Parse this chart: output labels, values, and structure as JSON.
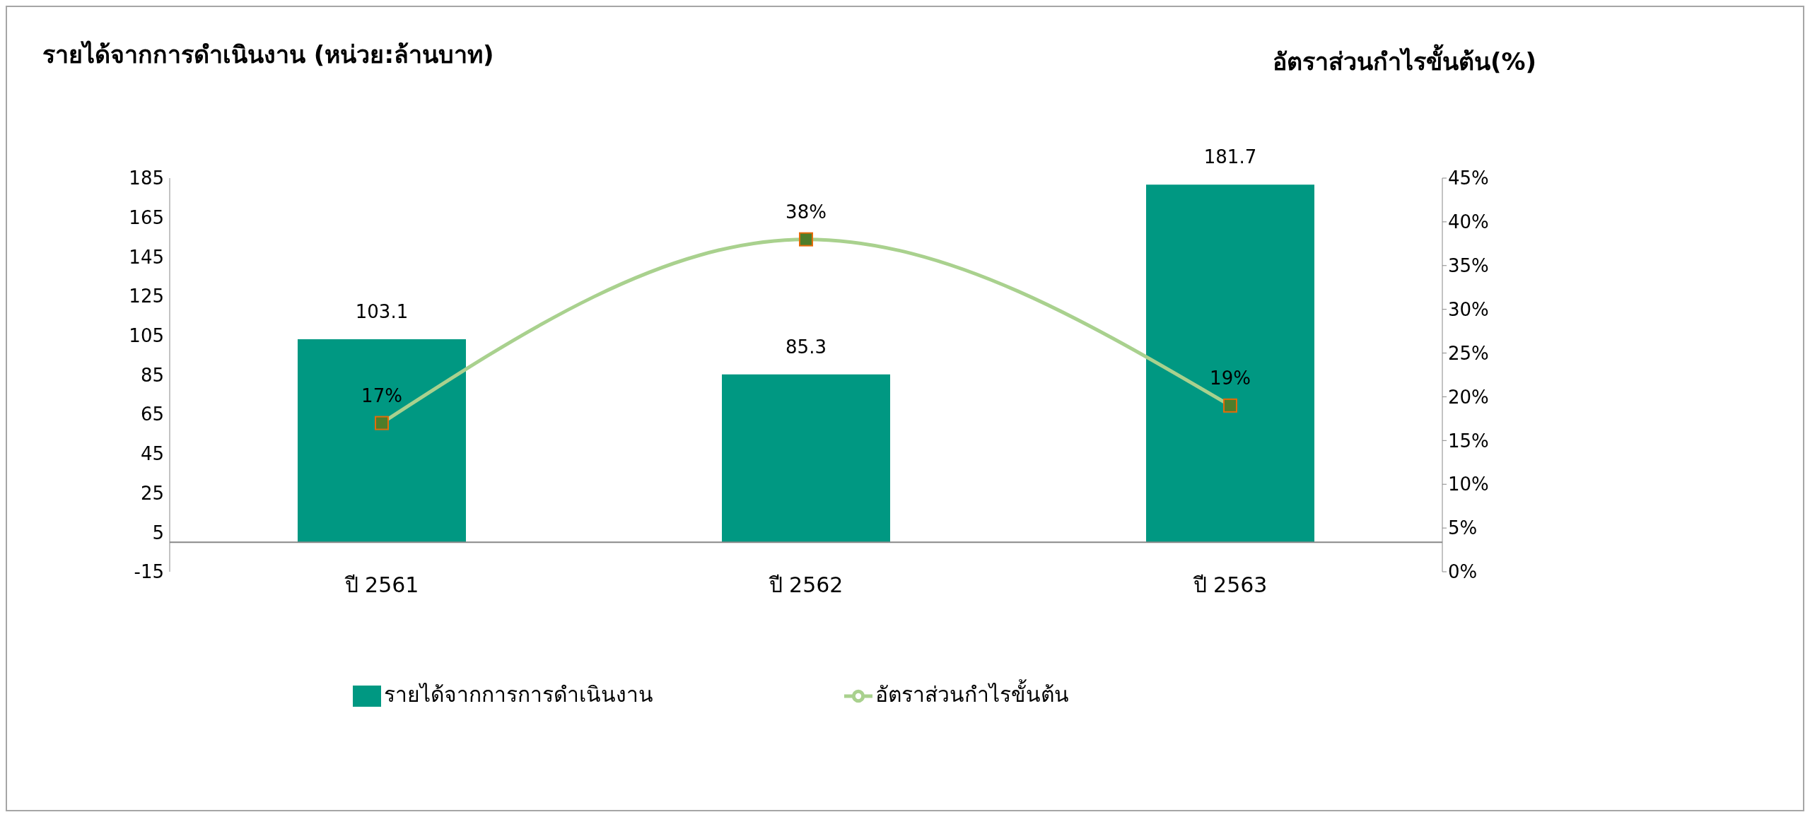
{
  "chart_data": {
    "type": "bar",
    "ylabel": "รายได้จากการดำเนินงาน (หน่วย:ล้านบาท)",
    "y2label": "อัตราส่วนกำไรขั้นต้น(%)",
    "categories": [
      "ปี 2561",
      "ปี 2562",
      "ปี 2563"
    ],
    "series": [
      {
        "name": "รายได้จากการการดำเนินงาน",
        "color": "#009882",
        "values": [
          103.1,
          85.3,
          181.7
        ],
        "value_labels": [
          "103.1",
          "85.3",
          "181.7"
        ]
      },
      {
        "name": "อัตราส่วนกำไรขั้นต้น",
        "type": "line",
        "axis": "y2",
        "color": "#a9d18e",
        "values": [
          17,
          38,
          19
        ],
        "value_labels": [
          "17%",
          "38%",
          "19%"
        ]
      }
    ],
    "ylim": [
      -15,
      185
    ],
    "yticks": [
      -15,
      5,
      25,
      45,
      65,
      85,
      105,
      125,
      145,
      165,
      185
    ],
    "y2lim": [
      0,
      45
    ],
    "y2ticks": [
      {
        "value": 0,
        "label": "0%"
      },
      {
        "value": 5,
        "label": "5%"
      },
      {
        "value": 10,
        "label": "10%"
      },
      {
        "value": 15,
        "label": "15%"
      },
      {
        "value": 20,
        "label": "20%"
      },
      {
        "value": 25,
        "label": "25%"
      },
      {
        "value": 30,
        "label": "30%"
      },
      {
        "value": 35,
        "label": "35%"
      },
      {
        "value": 40,
        "label": "40%"
      },
      {
        "value": 45,
        "label": "45%"
      }
    ],
    "legend": "bottom",
    "marker": "square",
    "grid": false
  }
}
